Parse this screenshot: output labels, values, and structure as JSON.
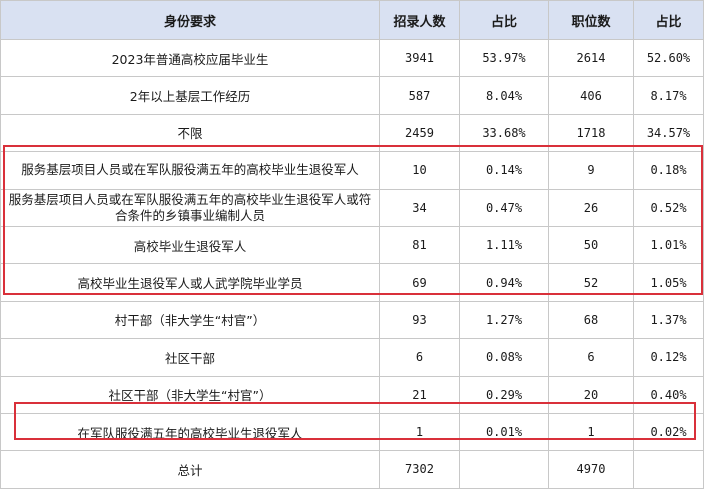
{
  "headers": [
    "身份要求",
    "招录人数",
    "占比",
    "职位数",
    "占比"
  ],
  "rows": [
    {
      "label": "2023年普通高校应届毕业生",
      "count": "3941",
      "count_pct": "53.97%",
      "positions": "2614",
      "pos_pct": "52.60%"
    },
    {
      "label": "2年以上基层工作经历",
      "count": "587",
      "count_pct": "8.04%",
      "positions": "406",
      "pos_pct": "8.17%"
    },
    {
      "label": "不限",
      "count": "2459",
      "count_pct": "33.68%",
      "positions": "1718",
      "pos_pct": "34.57%"
    },
    {
      "label": "服务基层项目人员或在军队服役满五年的高校毕业生退役军人",
      "count": "10",
      "count_pct": "0.14%",
      "positions": "9",
      "pos_pct": "0.18%"
    },
    {
      "label": "服务基层项目人员或在军队服役满五年的高校毕业生退役军人或符合条件的乡镇事业编制人员",
      "count": "34",
      "count_pct": "0.47%",
      "positions": "26",
      "pos_pct": "0.52%"
    },
    {
      "label": "高校毕业生退役军人",
      "count": "81",
      "count_pct": "1.11%",
      "positions": "50",
      "pos_pct": "1.01%"
    },
    {
      "label": "高校毕业生退役军人或人武学院毕业学员",
      "count": "69",
      "count_pct": "0.94%",
      "positions": "52",
      "pos_pct": "1.05%"
    },
    {
      "label": "村干部（非大学生“村官”）",
      "count": "93",
      "count_pct": "1.27%",
      "positions": "68",
      "pos_pct": "1.37%"
    },
    {
      "label": "社区干部",
      "count": "6",
      "count_pct": "0.08%",
      "positions": "6",
      "pos_pct": "0.12%"
    },
    {
      "label": "社区干部（非大学生“村官”）",
      "count": "21",
      "count_pct": "0.29%",
      "positions": "20",
      "pos_pct": "0.40%"
    },
    {
      "label": "在军队服役满五年的高校毕业生退役军人",
      "count": "1",
      "count_pct": "0.01%",
      "positions": "1",
      "pos_pct": "0.02%"
    }
  ],
  "total": {
    "label": "总计",
    "count": "7302",
    "count_pct": "",
    "positions": "4970",
    "pos_pct": ""
  },
  "colors": {
    "header_bg": "#d9e1f2",
    "highlight_border": "#d9303a",
    "grid": "#c8c8c8"
  }
}
